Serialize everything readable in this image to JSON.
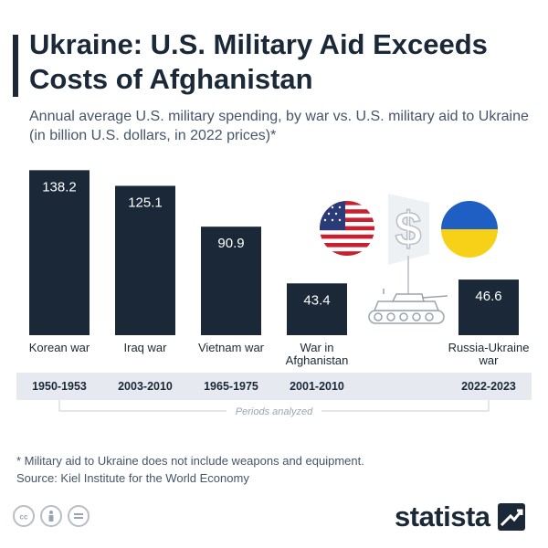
{
  "header": {
    "title": "Ukraine: U.S. Military Aid Exceeds Costs of Afghanistan",
    "subtitle": "Annual average U.S. military spending, by war vs. U.S. military aid to Ukraine (in billion U.S. dollars, in 2022 prices)*"
  },
  "chart_data": {
    "type": "bar",
    "title": "Ukraine: U.S. Military Aid Exceeds Costs of Afghanistan",
    "subtitle": "Annual average U.S. military spending, by war vs. U.S. military aid to Ukraine (in billion U.S. dollars, in 2022 prices)*",
    "categories": [
      "Korean war",
      "Iraq war",
      "Vietnam war",
      "War in Afghanistan",
      "Russia-Ukraine war"
    ],
    "values": [
      138.2,
      125.1,
      90.9,
      43.4,
      46.6
    ],
    "value_labels": [
      "138.2",
      "125.1",
      "90.9",
      "43.4",
      "46.6"
    ],
    "periods": [
      "1950-1953",
      "2003-2010",
      "1965-1975",
      "2001-2010",
      "2022-2023"
    ],
    "periods_caption": "Periods analyzed",
    "ylim": [
      0,
      140
    ],
    "grid": false,
    "legend": "none",
    "bar_color": "#1a2838"
  },
  "footer": {
    "footnote": "* Military aid to Ukraine does not include weapons and equipment.",
    "source": "Source: Kiel Institute for the World Economy",
    "brand": "statista"
  },
  "icons": [
    "us-flag-icon",
    "dollar-sign-icon",
    "ukraine-flag-icon",
    "tank-icon",
    "cc-license-icon",
    "attribution-icon",
    "no-derivatives-icon",
    "statista-logo-icon"
  ],
  "colors": {
    "bar": "#1a2838",
    "title": "#1a2838",
    "subtitle": "#45556a",
    "period_band": "#e6eaf0",
    "ukraine_blue": "#1f5fc4",
    "ukraine_yellow": "#f7d118",
    "us_red": "#c8202f",
    "us_blue": "#2b3a78"
  }
}
